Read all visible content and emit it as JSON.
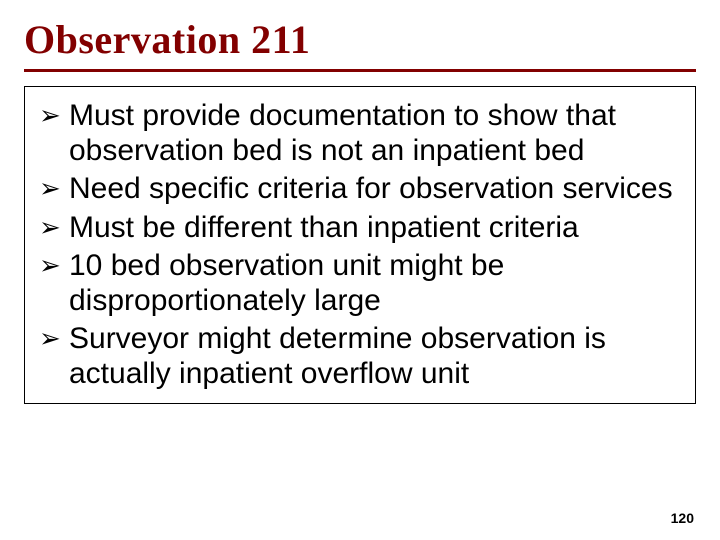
{
  "colors": {
    "title": "#820000",
    "underline": "#820000",
    "box_border": "#000000",
    "text": "#000000",
    "bullet": "#000000",
    "pagenum": "#000000",
    "background": "#ffffff"
  },
  "font_sizes": {
    "title": 40,
    "body": 30,
    "bullet": 26,
    "pagenum": 14
  },
  "line_heights": {
    "body": 1.15
  },
  "bullet_glyph": "➢",
  "title": "Observation 211",
  "bullets": [
    "Must provide documentation to show that observation bed is not an inpatient bed",
    "Need specific criteria for observation services",
    "Must be different than inpatient criteria",
    "10 bed observation unit might be disproportionately large",
    "Surveyor might determine observation is actually inpatient overflow unit"
  ],
  "page_number": "120"
}
